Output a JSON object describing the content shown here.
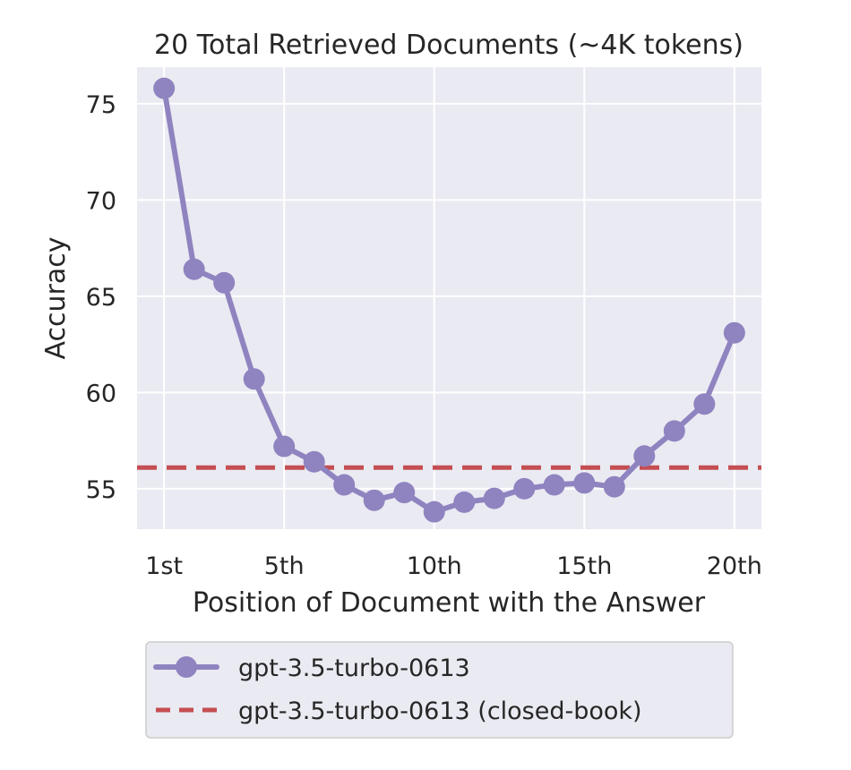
{
  "chart_data": {
    "type": "line",
    "title": "20 Total Retrieved Documents (~4K tokens)",
    "xlabel": "Position of Document with the Answer",
    "ylabel": "Accuracy",
    "xlim": [
      0.1,
      20.9
    ],
    "ylim": [
      52.9,
      76.9
    ],
    "x_ticks": [
      {
        "value": 1,
        "label": "1st"
      },
      {
        "value": 5,
        "label": "5th"
      },
      {
        "value": 10,
        "label": "10th"
      },
      {
        "value": 15,
        "label": "15th"
      },
      {
        "value": 20,
        "label": "20th"
      }
    ],
    "y_ticks": [
      {
        "value": 55,
        "label": "55"
      },
      {
        "value": 60,
        "label": "60"
      },
      {
        "value": 65,
        "label": "65"
      },
      {
        "value": 70,
        "label": "70"
      },
      {
        "value": 75,
        "label": "75"
      }
    ],
    "grid": true,
    "legend_position": "below",
    "series": [
      {
        "name": "gpt-3.5-turbo-0613",
        "color": "#8f83c0",
        "style": "solid-marker",
        "x": [
          1,
          2,
          3,
          4,
          5,
          6,
          7,
          8,
          9,
          10,
          11,
          12,
          13,
          14,
          15,
          16,
          17,
          18,
          19,
          20
        ],
        "values": [
          75.8,
          66.4,
          65.7,
          60.7,
          57.2,
          56.4,
          55.2,
          54.4,
          54.8,
          53.8,
          54.3,
          54.5,
          55.0,
          55.2,
          55.3,
          55.1,
          56.7,
          58.0,
          59.4,
          63.1
        ]
      },
      {
        "name": "gpt-3.5-turbo-0613 (closed-book)",
        "color": "#c44e52",
        "style": "dashed",
        "constant": 56.1
      }
    ]
  }
}
